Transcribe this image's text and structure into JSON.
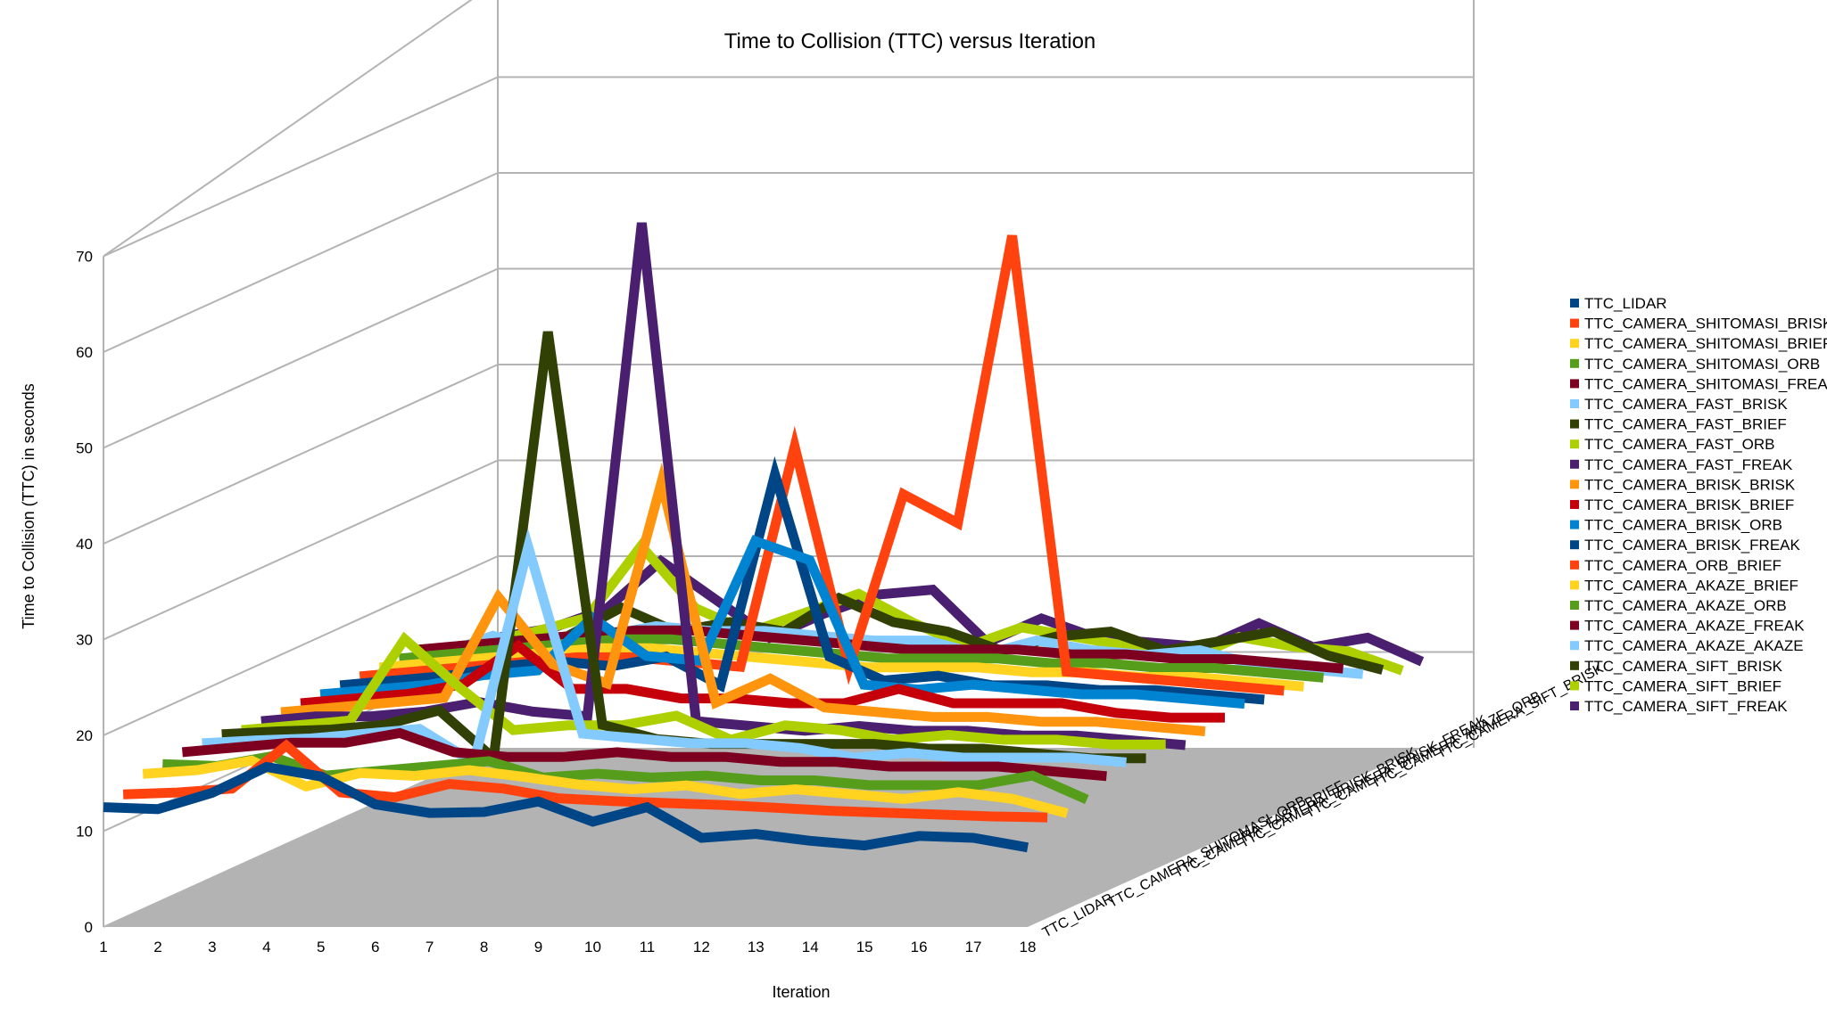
{
  "chart_data": {
    "type": "line",
    "title": "Time to Collision (TTC) versus Iteration",
    "xlabel": "Iteration",
    "ylabel": "Time to Collision (TTC) in seconds",
    "ylim": [
      0,
      70
    ],
    "yticks": [
      0,
      10,
      20,
      30,
      40,
      50,
      60,
      70
    ],
    "x": [
      1,
      2,
      3,
      4,
      5,
      6,
      7,
      8,
      9,
      10,
      11,
      12,
      13,
      14,
      15,
      16,
      17,
      18
    ],
    "grid": true,
    "legend_position": "right",
    "depth_labels": [
      "TTC_LIDAR",
      "TTC_CAMERA_SHITOMASI_ORB",
      "TTC_CAMERA_FAST_BRIEF",
      "TTC_CAMERA_BRISK_BRISK",
      "TTC_CAMERA_BRISK_FREAK",
      "TTC_CAMERA_AKAZE_ORB",
      "TTC_CAMERA_SIFT_BRISK"
    ],
    "series": [
      {
        "name": "TTC_LIDAR",
        "color": "#004586",
        "values": [
          12.5,
          12.3,
          14.0,
          16.7,
          15.7,
          12.8,
          11.9,
          12.0,
          13.1,
          11.0,
          12.5,
          9.3,
          9.7,
          9.0,
          8.5,
          9.5,
          9.3,
          8.3
        ]
      },
      {
        "name": "TTC_CAMERA_SHITOMASI_BRISK",
        "color": "#ff420e",
        "values": [
          12.9,
          13.1,
          13.5,
          18.0,
          13.1,
          12.6,
          14.0,
          13.5,
          12.5,
          12.2,
          12.0,
          11.8,
          11.5,
          11.2,
          11.0,
          10.8,
          10.6,
          10.5
        ]
      },
      {
        "name": "TTC_CAMERA_SHITOMASI_BRIEF",
        "color": "#ffd320",
        "values": [
          14.1,
          14.5,
          15.5,
          12.8,
          14.2,
          13.9,
          14.5,
          13.8,
          13.0,
          12.5,
          12.9,
          12.0,
          12.5,
          12.0,
          11.5,
          12.2,
          11.5,
          10.0
        ]
      },
      {
        "name": "TTC_CAMERA_SHITOMASI_ORB",
        "color": "#579d1c",
        "values": [
          14.2,
          14.0,
          15.0,
          13.0,
          13.5,
          14.0,
          14.5,
          12.8,
          13.2,
          12.8,
          13.0,
          12.5,
          12.5,
          12.0,
          12.0,
          12.0,
          13.0,
          10.5
        ]
      },
      {
        "name": "TTC_CAMERA_SHITOMASI_FREAK",
        "color": "#7e0021",
        "values": [
          14.5,
          15.0,
          15.5,
          15.5,
          16.5,
          14.5,
          14.0,
          14.0,
          14.5,
          14.0,
          14.0,
          13.5,
          13.5,
          13.0,
          13.0,
          13.0,
          12.5,
          12.0
        ]
      },
      {
        "name": "TTC_CAMERA_FAST_BRISK",
        "color": "#83caff",
        "values": [
          14.5,
          14.8,
          15.0,
          15.5,
          16.0,
          12.5,
          35.0,
          15.5,
          15.0,
          14.5,
          14.5,
          14.0,
          13.0,
          13.5,
          13.0,
          13.0,
          13.0,
          12.5
        ]
      },
      {
        "name": "TTC_CAMERA_FAST_BRIEF",
        "color": "#314004",
        "values": [
          14.5,
          14.8,
          15.0,
          15.5,
          17.0,
          12.0,
          56.5,
          15.5,
          14.0,
          13.5,
          13.5,
          13.5,
          13.5,
          13.0,
          13.0,
          12.5,
          12.0,
          12.0
        ]
      },
      {
        "name": "TTC_CAMERA_FAST_ORB",
        "color": "#aecf00",
        "values": [
          14.0,
          14.5,
          15.0,
          23.5,
          18.5,
          14.0,
          14.5,
          14.5,
          15.5,
          13.0,
          14.5,
          14.0,
          13.0,
          13.5,
          13.0,
          13.0,
          12.5,
          12.5
        ]
      },
      {
        "name": "TTC_CAMERA_FAST_FREAK",
        "color": "#4b1f6f",
        "values": [
          14.0,
          14.5,
          14.5,
          15.0,
          16.0,
          15.0,
          14.5,
          66.0,
          14.0,
          13.5,
          13.0,
          13.5,
          13.0,
          13.0,
          12.5,
          12.5,
          12.0,
          11.5
        ]
      },
      {
        "name": "TTC_CAMERA_BRISK_BRISK",
        "color": "#ff950e",
        "values": [
          14.0,
          14.5,
          15.0,
          15.5,
          26.0,
          19.0,
          17.0,
          38.0,
          15.0,
          17.5,
          14.5,
          14.0,
          13.5,
          13.5,
          13.0,
          13.0,
          12.5,
          12.0
        ]
      },
      {
        "name": "TTC_CAMERA_BRISK_BRIEF",
        "color": "#c5000b",
        "values": [
          14.0,
          14.5,
          15.0,
          16.0,
          20.0,
          15.5,
          15.5,
          14.5,
          14.5,
          14.0,
          14.0,
          15.5,
          14.0,
          14.0,
          14.0,
          13.0,
          12.5,
          12.5
        ]
      },
      {
        "name": "TTC_CAMERA_BRISK_ORB",
        "color": "#0084d1",
        "values": [
          14.0,
          14.5,
          15.0,
          16.0,
          16.5,
          22.0,
          18.0,
          17.5,
          30.0,
          28.0,
          15.0,
          14.5,
          15.0,
          14.5,
          14.0,
          14.0,
          13.5,
          13.0
        ]
      },
      {
        "name": "TTC_CAMERA_BRISK_FREAK",
        "color": "#004586",
        "values": [
          14.0,
          14.5,
          15.0,
          16.0,
          16.5,
          16.0,
          17.0,
          14.0,
          36.0,
          17.0,
          14.5,
          15.0,
          14.0,
          14.0,
          13.5,
          13.5,
          13.0,
          12.5
        ]
      },
      {
        "name": "TTC_CAMERA_ORB_BRIEF",
        "color": "#ff420e",
        "values": [
          14.0,
          14.5,
          15.0,
          15.5,
          16.0,
          16.0,
          15.5,
          15.0,
          38.0,
          15.0,
          33.0,
          30.0,
          60.0,
          14.5,
          14.0,
          13.5,
          13.0,
          12.5
        ]
      },
      {
        "name": "TTC_CAMERA_AKAZE_BRIEF",
        "color": "#ffd320",
        "values": [
          14.0,
          14.5,
          15.0,
          15.5,
          16.0,
          16.0,
          15.5,
          15.0,
          14.5,
          14.0,
          14.0,
          14.0,
          13.5,
          13.5,
          13.0,
          13.0,
          12.5,
          12.0
        ]
      },
      {
        "name": "TTC_CAMERA_AKAZE_ORB",
        "color": "#579d1c",
        "values": [
          14.0,
          14.5,
          15.0,
          15.5,
          16.0,
          16.0,
          15.5,
          15.0,
          14.5,
          14.0,
          14.0,
          14.0,
          13.5,
          13.5,
          13.0,
          13.0,
          12.5,
          12.0
        ]
      },
      {
        "name": "TTC_CAMERA_AKAZE_FREAK",
        "color": "#7e0021",
        "values": [
          14.0,
          14.5,
          15.0,
          15.5,
          16.0,
          16.0,
          15.5,
          15.0,
          14.5,
          14.0,
          14.0,
          14.0,
          13.5,
          13.5,
          13.0,
          13.0,
          12.5,
          12.0
        ]
      },
      {
        "name": "TTC_CAMERA_AKAZE_AKAZE",
        "color": "#83caff",
        "values": [
          12.5,
          14.5,
          13.0,
          14.5,
          15.5,
          15.0,
          15.0,
          14.5,
          14.0,
          14.0,
          12.5,
          14.0,
          13.0,
          12.5,
          13.0,
          11.5,
          11.0,
          10.5
        ]
      },
      {
        "name": "TTC_CAMERA_SIFT_BRISK",
        "color": "#314004",
        "values": [
          12.5,
          13.0,
          13.5,
          16.5,
          14.0,
          15.0,
          14.0,
          17.5,
          15.0,
          14.0,
          12.0,
          13.5,
          14.0,
          12.0,
          13.0,
          14.0,
          11.5,
          10.0
        ]
      },
      {
        "name": "TTC_CAMERA_SIFT_BRIEF",
        "color": "#aecf00",
        "values": [
          11.8,
          13.0,
          14.5,
          22.0,
          15.5,
          13.0,
          15.0,
          17.0,
          14.0,
          11.5,
          13.5,
          12.5,
          11.5,
          10.0,
          12.5,
          11.5,
          11.0,
          9.0
        ]
      },
      {
        "name": "TTC_CAMERA_SIFT_FREAK",
        "color": "#4b1f6f",
        "values": [
          11.5,
          12.5,
          14.5,
          19.5,
          15.5,
          11.5,
          14.0,
          16.0,
          16.5,
          11.0,
          13.5,
          11.5,
          11.0,
          10.5,
          13.0,
          10.5,
          11.5,
          9.0
        ]
      }
    ]
  }
}
